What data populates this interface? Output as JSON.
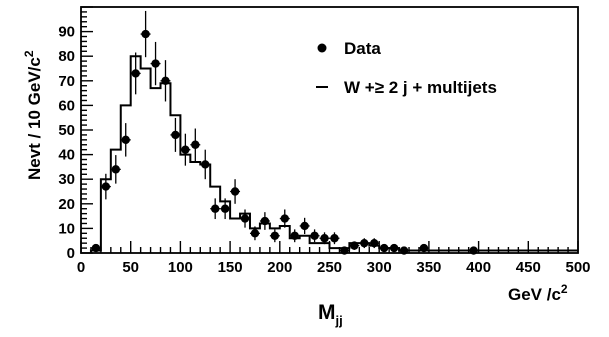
{
  "chart_data": {
    "type": "histogram",
    "xlabel": "M",
    "xlabel_sub": "jj",
    "xunit_main": "GeV /c",
    "xunit_sup": "2",
    "ylabel": "Nevt / 10 GeV/c",
    "ylabel_sup": "2",
    "xlim": [
      0,
      500
    ],
    "ylim": [
      0,
      100
    ],
    "x_ticks": [
      0,
      50,
      100,
      150,
      200,
      250,
      300,
      350,
      400,
      450,
      500
    ],
    "y_ticks": [
      0,
      10,
      20,
      30,
      40,
      50,
      60,
      70,
      80,
      90
    ],
    "grid": false,
    "legend_position": "top-right",
    "series": [
      {
        "name": "Data",
        "kind": "points",
        "marker": "circle",
        "color": "#000000",
        "points": [
          {
            "x": 15,
            "y": 2,
            "err": 1.4
          },
          {
            "x": 25,
            "y": 27,
            "err": 5.2
          },
          {
            "x": 35,
            "y": 34,
            "err": 5.8
          },
          {
            "x": 45,
            "y": 46,
            "err": 6.8
          },
          {
            "x": 55,
            "y": 73,
            "err": 8.5
          },
          {
            "x": 65,
            "y": 89,
            "err": 9.4
          },
          {
            "x": 75,
            "y": 77,
            "err": 8.8
          },
          {
            "x": 85,
            "y": 70,
            "err": 8.4
          },
          {
            "x": 95,
            "y": 48,
            "err": 6.9
          },
          {
            "x": 105,
            "y": 42,
            "err": 6.5
          },
          {
            "x": 115,
            "y": 44,
            "err": 6.6
          },
          {
            "x": 125,
            "y": 36,
            "err": 6.0
          },
          {
            "x": 135,
            "y": 18,
            "err": 4.2
          },
          {
            "x": 145,
            "y": 18,
            "err": 4.2
          },
          {
            "x": 155,
            "y": 25,
            "err": 5.0
          },
          {
            "x": 165,
            "y": 14,
            "err": 3.7
          },
          {
            "x": 175,
            "y": 8,
            "err": 2.8
          },
          {
            "x": 185,
            "y": 13,
            "err": 3.6
          },
          {
            "x": 195,
            "y": 7,
            "err": 2.6
          },
          {
            "x": 205,
            "y": 14,
            "err": 3.7
          },
          {
            "x": 215,
            "y": 7,
            "err": 2.6
          },
          {
            "x": 225,
            "y": 11,
            "err": 3.3
          },
          {
            "x": 235,
            "y": 7,
            "err": 2.6
          },
          {
            "x": 245,
            "y": 6,
            "err": 2.4
          },
          {
            "x": 255,
            "y": 6,
            "err": 2.4
          },
          {
            "x": 265,
            "y": 1,
            "err": 1.0
          },
          {
            "x": 275,
            "y": 3,
            "err": 1.7
          },
          {
            "x": 285,
            "y": 4,
            "err": 2.0
          },
          {
            "x": 295,
            "y": 4,
            "err": 2.0
          },
          {
            "x": 305,
            "y": 2,
            "err": 1.4
          },
          {
            "x": 315,
            "y": 2,
            "err": 1.4
          },
          {
            "x": 325,
            "y": 1,
            "err": 1.0
          },
          {
            "x": 345,
            "y": 2,
            "err": 1.4
          },
          {
            "x": 395,
            "y": 1,
            "err": 1.0
          }
        ]
      },
      {
        "name": "W +≥ 2 j + multijets",
        "kind": "step",
        "color": "#000000",
        "bin_edges": [
          10,
          20,
          30,
          40,
          50,
          60,
          70,
          80,
          90,
          100,
          110,
          120,
          130,
          140,
          150,
          160,
          170,
          180,
          190,
          200,
          210,
          220,
          230,
          240,
          250,
          260,
          270,
          280,
          290,
          300,
          310,
          320,
          330,
          340,
          350,
          360,
          370,
          380,
          390,
          400,
          410,
          420,
          430,
          440,
          450,
          460,
          470,
          480,
          490,
          500
        ],
        "values": [
          1,
          30,
          42,
          60,
          80,
          75,
          67,
          69,
          56,
          40,
          37,
          36,
          27,
          21,
          14,
          16,
          10,
          12,
          10,
          11,
          6,
          7,
          4,
          4,
          2,
          2,
          4,
          4,
          3,
          2,
          2,
          1,
          1,
          1,
          1,
          1,
          1,
          1,
          1,
          1,
          1,
          1,
          1,
          1,
          1,
          1,
          1,
          1,
          1
        ]
      }
    ],
    "legend": [
      {
        "marker": "dot",
        "label": "Data"
      },
      {
        "marker": "dash",
        "label": "W +≥ 2 j + multijets"
      }
    ]
  }
}
